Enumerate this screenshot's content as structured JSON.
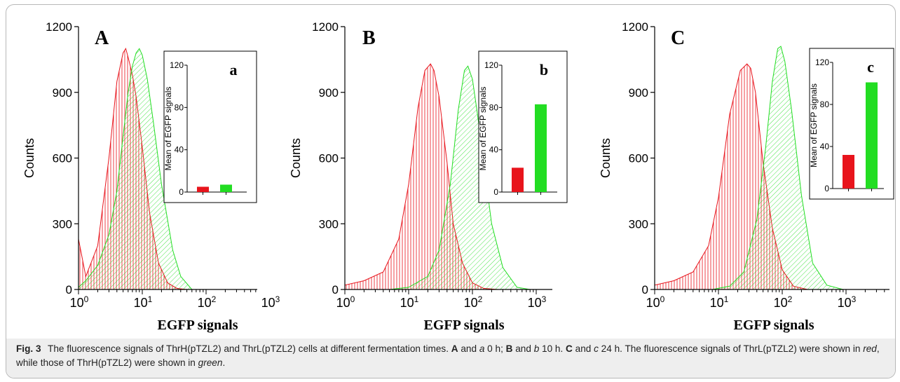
{
  "caption": {
    "label": "Fig. 3",
    "text_parts": [
      {
        "t": "The fluorescence signals of ThrH(pTZL2) and ThrL(pTZL2) cells at different fermentation times. ",
        "s": "n"
      },
      {
        "t": "A",
        "s": "b"
      },
      {
        "t": " and ",
        "s": "n"
      },
      {
        "t": "a",
        "s": "i"
      },
      {
        "t": " 0 h; ",
        "s": "n"
      },
      {
        "t": "B",
        "s": "b"
      },
      {
        "t": " and ",
        "s": "n"
      },
      {
        "t": "b",
        "s": "i"
      },
      {
        "t": " 10 h. ",
        "s": "n"
      },
      {
        "t": "C",
        "s": "b"
      },
      {
        "t": " and ",
        "s": "n"
      },
      {
        "t": "c",
        "s": "i"
      },
      {
        "t": " 24 h. The fluorescence signals of ThrL(pTZL2) were shown in ",
        "s": "n"
      },
      {
        "t": "red",
        "s": "i"
      },
      {
        "t": ", while those of ThrH(pTZL2) were shown in ",
        "s": "n"
      },
      {
        "t": "green",
        "s": "i"
      },
      {
        "t": ".",
        "s": "n"
      }
    ]
  },
  "colors": {
    "red": "#e8141c",
    "green": "#22dd22",
    "axis": "#000000"
  },
  "chart_data": [
    {
      "type": "area",
      "panel_label": "A",
      "xlabel": "EGFP signals",
      "ylabel": "Counts",
      "x_scale": "log",
      "xlim": [
        1,
        5000
      ],
      "ylim": [
        0,
        1200
      ],
      "yticks": [
        "0",
        "300",
        "600",
        "900",
        "1200"
      ],
      "xticks": [
        {
          "base": "10",
          "exp": "0"
        },
        {
          "base": "10",
          "exp": "1"
        },
        {
          "base": "10",
          "exp": "2"
        },
        {
          "base": "10",
          "exp": "3"
        }
      ],
      "series": [
        {
          "color": "red",
          "x": [
            1,
            1.3,
            2,
            3,
            4,
            5,
            5.5,
            6,
            7,
            8,
            10,
            13,
            18,
            25,
            35,
            50
          ],
          "y": [
            230,
            60,
            200,
            600,
            950,
            1080,
            1100,
            1060,
            980,
            880,
            650,
            350,
            120,
            30,
            5,
            0
          ]
        },
        {
          "color": "green",
          "x": [
            1,
            1.3,
            2,
            3,
            4,
            5,
            6,
            7,
            8,
            9,
            10,
            12,
            15,
            20,
            30,
            40,
            60
          ],
          "y": [
            10,
            40,
            110,
            250,
            450,
            700,
            900,
            1020,
            1080,
            1100,
            1070,
            960,
            760,
            480,
            180,
            60,
            0
          ]
        }
      ],
      "inset": {
        "label": "a",
        "ylabel": "Mean of EGFP signals",
        "ylim": [
          0,
          120
        ],
        "yticks": [
          "0",
          "40",
          "80",
          "120"
        ],
        "bars": [
          {
            "color": "red",
            "value": 5
          },
          {
            "color": "green",
            "value": 7
          }
        ]
      }
    },
    {
      "type": "area",
      "panel_label": "B",
      "xlabel": "EGFP signals",
      "ylabel": "Counts",
      "x_scale": "log",
      "xlim": [
        1,
        5000
      ],
      "ylim": [
        0,
        1200
      ],
      "yticks": [
        "0",
        "300",
        "600",
        "900",
        "1200"
      ],
      "xticks": [
        {
          "base": "10",
          "exp": "0"
        },
        {
          "base": "10",
          "exp": "1"
        },
        {
          "base": "10",
          "exp": "2"
        },
        {
          "base": "10",
          "exp": "3"
        }
      ],
      "series": [
        {
          "color": "red",
          "x": [
            1,
            2,
            4,
            7,
            10,
            14,
            18,
            22,
            25,
            30,
            40,
            50,
            70,
            100,
            150,
            250
          ],
          "y": [
            20,
            40,
            80,
            230,
            480,
            830,
            1000,
            1030,
            1000,
            880,
            580,
            300,
            120,
            30,
            5,
            0
          ]
        },
        {
          "color": "green",
          "x": [
            5,
            10,
            20,
            30,
            45,
            60,
            75,
            85,
            100,
            120,
            150,
            200,
            300,
            500,
            800
          ],
          "y": [
            0,
            10,
            60,
            180,
            480,
            820,
            1000,
            1020,
            960,
            800,
            580,
            300,
            100,
            10,
            0
          ]
        }
      ],
      "inset": {
        "label": "b",
        "ylabel": "Mean of EGFP signals",
        "ylim": [
          0,
          120
        ],
        "yticks": [
          "0",
          "40",
          "80",
          "120"
        ],
        "bars": [
          {
            "color": "red",
            "value": 23
          },
          {
            "color": "green",
            "value": 83
          }
        ]
      }
    },
    {
      "type": "area",
      "panel_label": "C",
      "xlabel": "EGFP signals",
      "ylabel": "Counts",
      "x_scale": "log",
      "xlim": [
        1,
        5000
      ],
      "ylim": [
        0,
        1200
      ],
      "yticks": [
        "0",
        "300",
        "600",
        "900",
        "1200"
      ],
      "xticks": [
        {
          "base": "10",
          "exp": "0"
        },
        {
          "base": "10",
          "exp": "1"
        },
        {
          "base": "10",
          "exp": "2"
        },
        {
          "base": "10",
          "exp": "3"
        }
      ],
      "series": [
        {
          "color": "red",
          "x": [
            1,
            2,
            4,
            7,
            10,
            15,
            22,
            28,
            32,
            38,
            50,
            70,
            100,
            150,
            250
          ],
          "y": [
            20,
            40,
            80,
            200,
            420,
            800,
            1000,
            1030,
            1010,
            900,
            580,
            280,
            90,
            15,
            0
          ]
        },
        {
          "color": "green",
          "x": [
            8,
            15,
            25,
            40,
            55,
            70,
            85,
            95,
            110,
            140,
            200,
            300,
            500,
            900
          ],
          "y": [
            0,
            15,
            80,
            320,
            650,
            950,
            1100,
            1110,
            1040,
            820,
            430,
            120,
            20,
            0
          ]
        }
      ],
      "inset": {
        "label": "c",
        "ylabel": "Mean of EGFP signals",
        "ylim": [
          0,
          120
        ],
        "yticks": [
          "0",
          "40",
          "80",
          "120"
        ],
        "bars": [
          {
            "color": "red",
            "value": 32
          },
          {
            "color": "green",
            "value": 101
          }
        ]
      }
    }
  ]
}
